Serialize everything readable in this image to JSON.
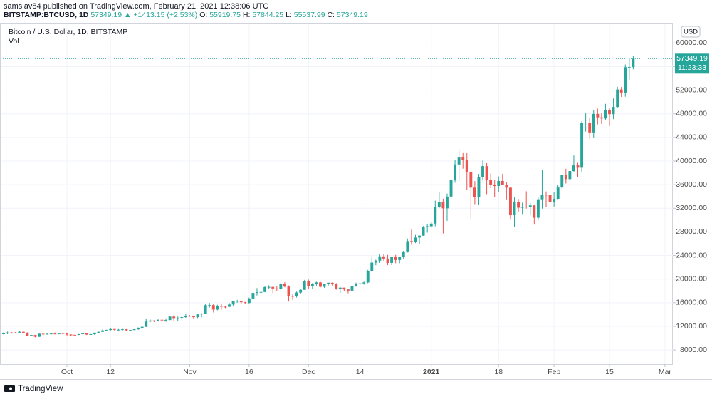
{
  "header": {
    "publisher": "samslav84 published on TradingView.com, February 21, 2021 12:38:06 UTC",
    "symbol": "BITSTAMP:BTCUSD, 1D",
    "arrow": "▲",
    "change": "+1413.15 (+2.53%)",
    "ohlc_prefixes": [
      "O:",
      "H:",
      "L:",
      "C:"
    ]
  },
  "footer": {
    "brand": "TradingView"
  },
  "chart_data": {
    "type": "candlestick",
    "title": "Bitcoin / U.S. Dollar, 1D, BITSTAMP",
    "volume_label": "Vol",
    "currency": "USD",
    "countdown": "11:23:33",
    "up_color": "#26a69a",
    "down_color": "#ef5350",
    "grid": true,
    "xlim": [
      "2020-09-15",
      "2021-03-03"
    ],
    "xticks": [
      {
        "value": "2020-10-01",
        "label": "Oct"
      },
      {
        "value": "2020-10-12",
        "label": "12"
      },
      {
        "value": "2020-11-01",
        "label": "Nov"
      },
      {
        "value": "2020-11-16",
        "label": "16"
      },
      {
        "value": "2020-12-01",
        "label": "Dec"
      },
      {
        "value": "2020-12-14",
        "label": "14"
      },
      {
        "value": "2021-01-01",
        "label": "2021"
      },
      {
        "value": "2021-01-18",
        "label": "18"
      },
      {
        "value": "2021-02-01",
        "label": "Feb"
      },
      {
        "value": "2021-02-15",
        "label": "15"
      },
      {
        "value": "2021-03-01",
        "label": "Mar"
      }
    ],
    "ylim": [
      5600,
      63300
    ],
    "yticks": [
      {
        "value": 8000,
        "label": "8000.00"
      },
      {
        "value": 12000,
        "label": "12000.00"
      },
      {
        "value": 16000,
        "label": "16000.00"
      },
      {
        "value": 20000,
        "label": "20000.00"
      },
      {
        "value": 24000,
        "label": "24000.00"
      },
      {
        "value": 28000,
        "label": "28000.00"
      },
      {
        "value": 32000,
        "label": "32000.00"
      },
      {
        "value": 36000,
        "label": "36000.00"
      },
      {
        "value": 40000,
        "label": "40000.00"
      },
      {
        "value": 44000,
        "label": "44000.00"
      },
      {
        "value": 48000,
        "label": "48000.00"
      },
      {
        "value": 52000,
        "label": "52000.00"
      },
      {
        "value": 56000,
        "label": "56000.00"
      },
      {
        "value": 60000,
        "label": "60000.00"
      }
    ],
    "x": [
      "2020-09-15",
      "2020-09-16",
      "2020-09-17",
      "2020-09-18",
      "2020-09-19",
      "2020-09-20",
      "2020-09-21",
      "2020-09-22",
      "2020-09-23",
      "2020-09-24",
      "2020-09-25",
      "2020-09-26",
      "2020-09-27",
      "2020-09-28",
      "2020-09-29",
      "2020-09-30",
      "2020-10-01",
      "2020-10-02",
      "2020-10-03",
      "2020-10-04",
      "2020-10-05",
      "2020-10-06",
      "2020-10-07",
      "2020-10-08",
      "2020-10-09",
      "2020-10-10",
      "2020-10-11",
      "2020-10-12",
      "2020-10-13",
      "2020-10-14",
      "2020-10-15",
      "2020-10-16",
      "2020-10-17",
      "2020-10-18",
      "2020-10-19",
      "2020-10-20",
      "2020-10-21",
      "2020-10-22",
      "2020-10-23",
      "2020-10-24",
      "2020-10-25",
      "2020-10-26",
      "2020-10-27",
      "2020-10-28",
      "2020-10-29",
      "2020-10-30",
      "2020-10-31",
      "2020-11-01",
      "2020-11-02",
      "2020-11-03",
      "2020-11-04",
      "2020-11-05",
      "2020-11-06",
      "2020-11-07",
      "2020-11-08",
      "2020-11-09",
      "2020-11-10",
      "2020-11-11",
      "2020-11-12",
      "2020-11-13",
      "2020-11-14",
      "2020-11-15",
      "2020-11-16",
      "2020-11-17",
      "2020-11-18",
      "2020-11-19",
      "2020-11-20",
      "2020-11-21",
      "2020-11-22",
      "2020-11-23",
      "2020-11-24",
      "2020-11-25",
      "2020-11-26",
      "2020-11-27",
      "2020-11-28",
      "2020-11-29",
      "2020-11-30",
      "2020-12-01",
      "2020-12-02",
      "2020-12-03",
      "2020-12-04",
      "2020-12-05",
      "2020-12-06",
      "2020-12-07",
      "2020-12-08",
      "2020-12-09",
      "2020-12-10",
      "2020-12-11",
      "2020-12-12",
      "2020-12-13",
      "2020-12-14",
      "2020-12-15",
      "2020-12-16",
      "2020-12-17",
      "2020-12-18",
      "2020-12-19",
      "2020-12-20",
      "2020-12-21",
      "2020-12-22",
      "2020-12-23",
      "2020-12-24",
      "2020-12-25",
      "2020-12-26",
      "2020-12-27",
      "2020-12-28",
      "2020-12-29",
      "2020-12-30",
      "2020-12-31",
      "2021-01-01",
      "2021-01-02",
      "2021-01-03",
      "2021-01-04",
      "2021-01-05",
      "2021-01-06",
      "2021-01-07",
      "2021-01-08",
      "2021-01-09",
      "2021-01-10",
      "2021-01-11",
      "2021-01-12",
      "2021-01-13",
      "2021-01-14",
      "2021-01-15",
      "2021-01-16",
      "2021-01-17",
      "2021-01-18",
      "2021-01-19",
      "2021-01-20",
      "2021-01-21",
      "2021-01-22",
      "2021-01-23",
      "2021-01-24",
      "2021-01-25",
      "2021-01-26",
      "2021-01-27",
      "2021-01-28",
      "2021-01-29",
      "2021-01-30",
      "2021-01-31",
      "2021-02-01",
      "2021-02-02",
      "2021-02-03",
      "2021-02-04",
      "2021-02-05",
      "2021-02-06",
      "2021-02-07",
      "2021-02-08",
      "2021-02-09",
      "2021-02-10",
      "2021-02-11",
      "2021-02-12",
      "2021-02-13",
      "2021-02-14",
      "2021-02-15",
      "2021-02-16",
      "2021-02-17",
      "2021-02-18",
      "2021-02-19",
      "2021-02-20",
      "2021-02-21"
    ],
    "ohlc": [
      [
        10680,
        10950,
        10630,
        10790
      ],
      [
        10790,
        11100,
        10680,
        10950
      ],
      [
        10950,
        11040,
        10750,
        10940
      ],
      [
        10940,
        11040,
        10820,
        10930
      ],
      [
        10930,
        11180,
        10890,
        11080
      ],
      [
        11080,
        11080,
        10770,
        10920
      ],
      [
        10920,
        10990,
        10370,
        10420
      ],
      [
        10420,
        10580,
        10360,
        10530
      ],
      [
        10530,
        10540,
        10140,
        10240
      ],
      [
        10240,
        10790,
        10190,
        10740
      ],
      [
        10740,
        10770,
        10600,
        10690
      ],
      [
        10690,
        10800,
        10650,
        10730
      ],
      [
        10730,
        10800,
        10620,
        10770
      ],
      [
        10770,
        10960,
        10650,
        10690
      ],
      [
        10690,
        10860,
        10640,
        10840
      ],
      [
        10840,
        10850,
        10660,
        10780
      ],
      [
        10780,
        10930,
        10430,
        10610
      ],
      [
        10610,
        10640,
        10380,
        10570
      ],
      [
        10570,
        10600,
        10500,
        10550
      ],
      [
        10550,
        10700,
        10520,
        10670
      ],
      [
        10670,
        10800,
        10630,
        10790
      ],
      [
        10790,
        10800,
        10530,
        10600
      ],
      [
        10600,
        10690,
        10560,
        10670
      ],
      [
        10670,
        10950,
        10540,
        10920
      ],
      [
        10920,
        11100,
        10840,
        11060
      ],
      [
        11060,
        11490,
        11050,
        11300
      ],
      [
        11300,
        11440,
        11280,
        11380
      ],
      [
        11380,
        11720,
        11200,
        11540
      ],
      [
        11540,
        11560,
        11300,
        11430
      ],
      [
        11430,
        11550,
        11280,
        11430
      ],
      [
        11430,
        11620,
        11270,
        11500
      ],
      [
        11500,
        11540,
        11230,
        11320
      ],
      [
        11320,
        11400,
        11300,
        11370
      ],
      [
        11370,
        11520,
        11360,
        11500
      ],
      [
        11500,
        11820,
        11410,
        11750
      ],
      [
        11750,
        12000,
        11680,
        11920
      ],
      [
        11920,
        13220,
        11900,
        12810
      ],
      [
        12810,
        13180,
        12700,
        12990
      ],
      [
        12990,
        13030,
        12730,
        12930
      ],
      [
        12930,
        13160,
        12900,
        13120
      ],
      [
        13120,
        13350,
        12900,
        13030
      ],
      [
        13030,
        13240,
        12780,
        13070
      ],
      [
        13070,
        13790,
        13060,
        13650
      ],
      [
        13650,
        13860,
        12960,
        13280
      ],
      [
        13280,
        13650,
        12960,
        13460
      ],
      [
        13460,
        13660,
        13120,
        13560
      ],
      [
        13560,
        14100,
        13450,
        13800
      ],
      [
        13800,
        13900,
        13620,
        13760
      ],
      [
        13760,
        13820,
        13210,
        13550
      ],
      [
        13550,
        14070,
        13290,
        14030
      ],
      [
        14030,
        14240,
        13530,
        14150
      ],
      [
        14150,
        15760,
        14100,
        15590
      ],
      [
        15590,
        15960,
        15180,
        15590
      ],
      [
        15590,
        15750,
        14350,
        14840
      ],
      [
        14840,
        15650,
        14720,
        15480
      ],
      [
        15480,
        15820,
        14840,
        15330
      ],
      [
        15330,
        15460,
        15090,
        15310
      ],
      [
        15310,
        15950,
        15280,
        15700
      ],
      [
        15700,
        16340,
        15450,
        16290
      ],
      [
        16290,
        16480,
        15970,
        16330
      ],
      [
        16330,
        16330,
        15710,
        16080
      ],
      [
        16080,
        16150,
        15800,
        15960
      ],
      [
        15960,
        16870,
        15880,
        16720
      ],
      [
        16720,
        17850,
        16540,
        17660
      ],
      [
        17660,
        18480,
        17220,
        17800
      ],
      [
        17800,
        18140,
        17360,
        17820
      ],
      [
        17820,
        18800,
        17770,
        18650
      ],
      [
        18650,
        18950,
        18400,
        18680
      ],
      [
        18680,
        18700,
        17640,
        18410
      ],
      [
        18410,
        18760,
        18010,
        18370
      ],
      [
        18370,
        19410,
        18080,
        19160
      ],
      [
        19160,
        19490,
        18610,
        18740
      ],
      [
        18740,
        18920,
        16200,
        17150
      ],
      [
        17150,
        17450,
        16500,
        17140
      ],
      [
        17140,
        17890,
        16880,
        17720
      ],
      [
        17720,
        18330,
        17550,
        18180
      ],
      [
        18180,
        19860,
        18180,
        19710
      ],
      [
        19710,
        19920,
        18320,
        18800
      ],
      [
        18800,
        19330,
        18340,
        19220
      ],
      [
        19220,
        19560,
        18900,
        19440
      ],
      [
        19440,
        19520,
        18600,
        18700
      ],
      [
        18700,
        19180,
        18530,
        19160
      ],
      [
        19160,
        19420,
        18900,
        19380
      ],
      [
        19380,
        19420,
        18920,
        19180
      ],
      [
        19180,
        19300,
        18210,
        18320
      ],
      [
        18320,
        18640,
        17650,
        18550
      ],
      [
        18550,
        18560,
        17920,
        18250
      ],
      [
        18250,
        18290,
        17600,
        18040
      ],
      [
        18040,
        18930,
        18020,
        18800
      ],
      [
        18800,
        19400,
        18730,
        19170
      ],
      [
        19170,
        19330,
        19000,
        19270
      ],
      [
        19270,
        19570,
        19070,
        19440
      ],
      [
        19440,
        21560,
        19300,
        21350
      ],
      [
        21350,
        23770,
        21230,
        22800
      ],
      [
        22800,
        23290,
        22350,
        23130
      ],
      [
        23130,
        24170,
        22750,
        23850
      ],
      [
        23850,
        24280,
        23060,
        23480
      ],
      [
        23480,
        24100,
        22360,
        22750
      ],
      [
        22750,
        23840,
        22370,
        23820
      ],
      [
        23820,
        24100,
        22700,
        23240
      ],
      [
        23240,
        23790,
        22700,
        23730
      ],
      [
        23730,
        24790,
        23450,
        24690
      ],
      [
        24690,
        26870,
        24500,
        26440
      ],
      [
        26440,
        28380,
        25830,
        26280
      ],
      [
        26280,
        27480,
        26100,
        27040
      ],
      [
        27040,
        27400,
        25860,
        27370
      ],
      [
        27370,
        28990,
        27340,
        28890
      ],
      [
        28890,
        29300,
        27880,
        28950
      ],
      [
        28950,
        29620,
        28700,
        29410
      ],
      [
        29410,
        33300,
        28950,
        32190
      ],
      [
        32190,
        34780,
        32020,
        33000
      ],
      [
        33000,
        33620,
        27740,
        31990
      ],
      [
        31990,
        34500,
        29880,
        33990
      ],
      [
        33990,
        36940,
        33400,
        36820
      ],
      [
        36820,
        40180,
        36340,
        39420
      ],
      [
        39420,
        41950,
        36600,
        40600
      ],
      [
        40600,
        41350,
        38710,
        40150
      ],
      [
        40150,
        41340,
        35060,
        38200
      ],
      [
        38200,
        38200,
        30300,
        35500
      ],
      [
        35500,
        36600,
        32580,
        33950
      ],
      [
        33950,
        37820,
        32520,
        37320
      ],
      [
        37320,
        40100,
        36700,
        39140
      ],
      [
        39140,
        39650,
        34400,
        36780
      ],
      [
        36780,
        37900,
        35400,
        36000
      ],
      [
        36000,
        36800,
        33900,
        35780
      ],
      [
        35780,
        37400,
        34800,
        36630
      ],
      [
        36630,
        37840,
        35900,
        35920
      ],
      [
        35920,
        36400,
        33400,
        35490
      ],
      [
        35490,
        35560,
        30070,
        30820
      ],
      [
        30820,
        33830,
        28800,
        33000
      ],
      [
        33000,
        33450,
        31400,
        32100
      ],
      [
        32100,
        32960,
        30900,
        32280
      ],
      [
        32280,
        34880,
        31950,
        32260
      ],
      [
        32260,
        32900,
        30840,
        32490
      ],
      [
        32490,
        32530,
        29240,
        30400
      ],
      [
        30400,
        33780,
        30000,
        33400
      ],
      [
        33400,
        38530,
        31950,
        34300
      ],
      [
        34300,
        34850,
        32240,
        34290
      ],
      [
        34290,
        34300,
        32300,
        33110
      ],
      [
        33110,
        34700,
        32300,
        33540
      ],
      [
        33540,
        35940,
        33430,
        35520
      ],
      [
        35520,
        37680,
        35370,
        37650
      ],
      [
        37650,
        38700,
        36200,
        36940
      ],
      [
        36940,
        38300,
        36600,
        38310
      ],
      [
        38310,
        40950,
        38200,
        39270
      ],
      [
        39270,
        39700,
        37350,
        38870
      ],
      [
        38870,
        46750,
        38100,
        46440
      ],
      [
        46440,
        48180,
        45000,
        46520
      ],
      [
        46520,
        47300,
        43800,
        44850
      ],
      [
        44850,
        48600,
        44000,
        47990
      ],
      [
        47990,
        48880,
        46200,
        47400
      ],
      [
        47400,
        48150,
        46300,
        47210
      ],
      [
        47210,
        49690,
        47010,
        48590
      ],
      [
        48590,
        49000,
        45950,
        47940
      ],
      [
        47940,
        50600,
        47100,
        49160
      ],
      [
        49160,
        52600,
        48950,
        52120
      ],
      [
        52120,
        52550,
        50850,
        51600
      ],
      [
        51600,
        56350,
        50900,
        55900
      ],
      [
        55900,
        57500,
        53800,
        55920
      ],
      [
        55919.75,
        57844.25,
        55537.99,
        57349.19
      ]
    ]
  }
}
